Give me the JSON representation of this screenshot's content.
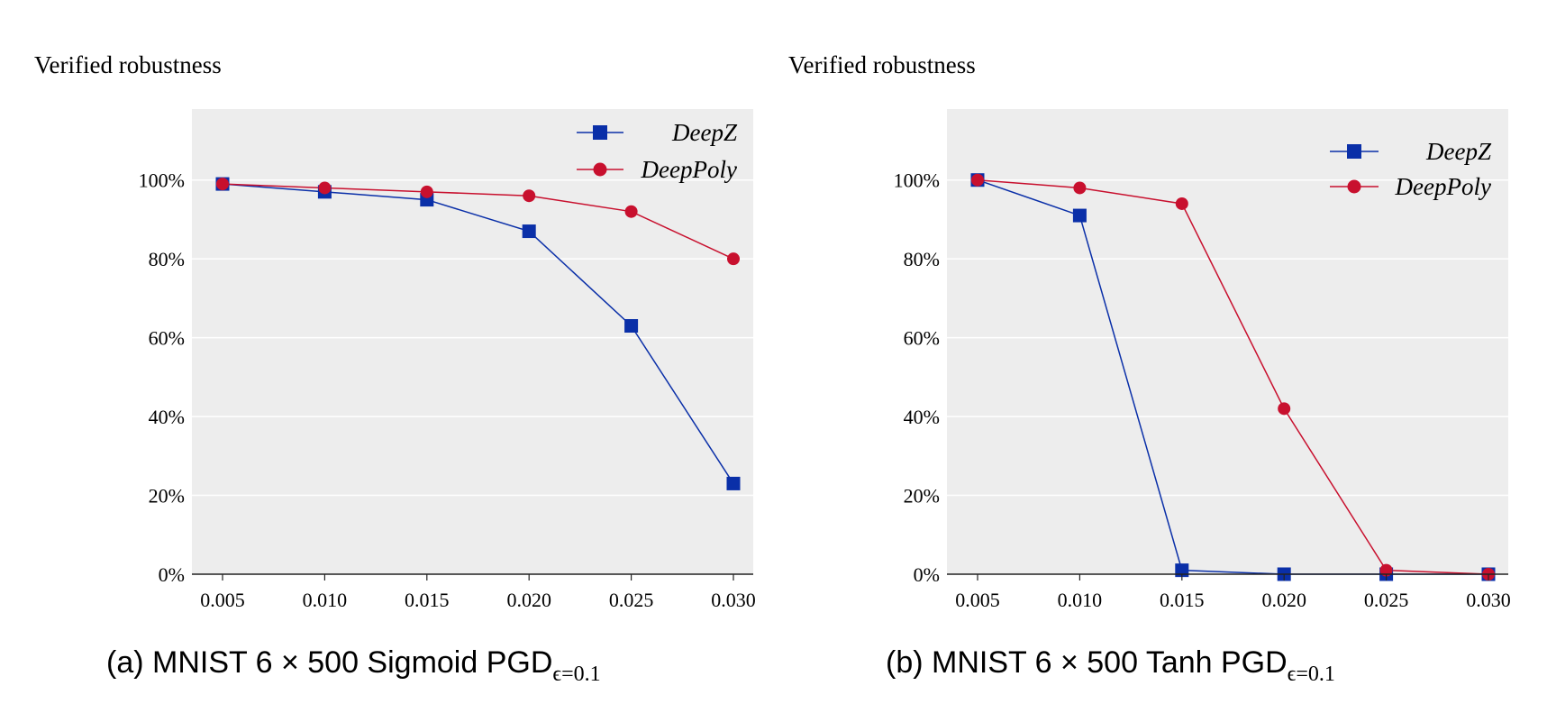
{
  "chart_data": [
    {
      "type": "line",
      "caption": "(a) MNIST 6 × 500 Sigmoid PGD",
      "caption_subscript": "ϵ=0.1",
      "ylabel": "Verified robustness",
      "xlabel": "",
      "x": [
        0.005,
        0.01,
        0.015,
        0.02,
        0.025,
        0.03
      ],
      "x_tick_labels": [
        "0.005",
        "0.010",
        "0.015",
        "0.020",
        "0.025",
        "0.030"
      ],
      "y_ticks": [
        0,
        20,
        40,
        60,
        80,
        100
      ],
      "y_tick_labels": [
        "0%",
        "20%",
        "40%",
        "60%",
        "80%",
        "100%"
      ],
      "ylim": [
        0,
        118
      ],
      "grid": true,
      "legend_position": "top-right",
      "series": [
        {
          "name": "DeepZ",
          "marker": "square",
          "color": "#0a2fa8",
          "values": [
            99,
            97,
            95,
            87,
            63,
            23
          ]
        },
        {
          "name": "DeepPoly",
          "marker": "circle",
          "color": "#c8102e",
          "values": [
            99,
            98,
            97,
            96,
            92,
            80
          ]
        }
      ]
    },
    {
      "type": "line",
      "caption": "(b) MNIST 6 × 500 Tanh PGD",
      "caption_subscript": "ϵ=0.1",
      "ylabel": "Verified robustness",
      "xlabel": "",
      "x": [
        0.005,
        0.01,
        0.015,
        0.02,
        0.025,
        0.03
      ],
      "x_tick_labels": [
        "0.005",
        "0.010",
        "0.015",
        "0.020",
        "0.025",
        "0.030"
      ],
      "y_ticks": [
        0,
        20,
        40,
        60,
        80,
        100
      ],
      "y_tick_labels": [
        "0%",
        "20%",
        "40%",
        "60%",
        "80%",
        "100%"
      ],
      "ylim": [
        0,
        118
      ],
      "grid": true,
      "legend_position": "top-right",
      "series": [
        {
          "name": "DeepZ",
          "marker": "square",
          "color": "#0a2fa8",
          "values": [
            100,
            91,
            1,
            0,
            0,
            0
          ]
        },
        {
          "name": "DeepPoly",
          "marker": "circle",
          "color": "#c8102e",
          "values": [
            100,
            98,
            94,
            42,
            1,
            0
          ]
        }
      ]
    }
  ]
}
